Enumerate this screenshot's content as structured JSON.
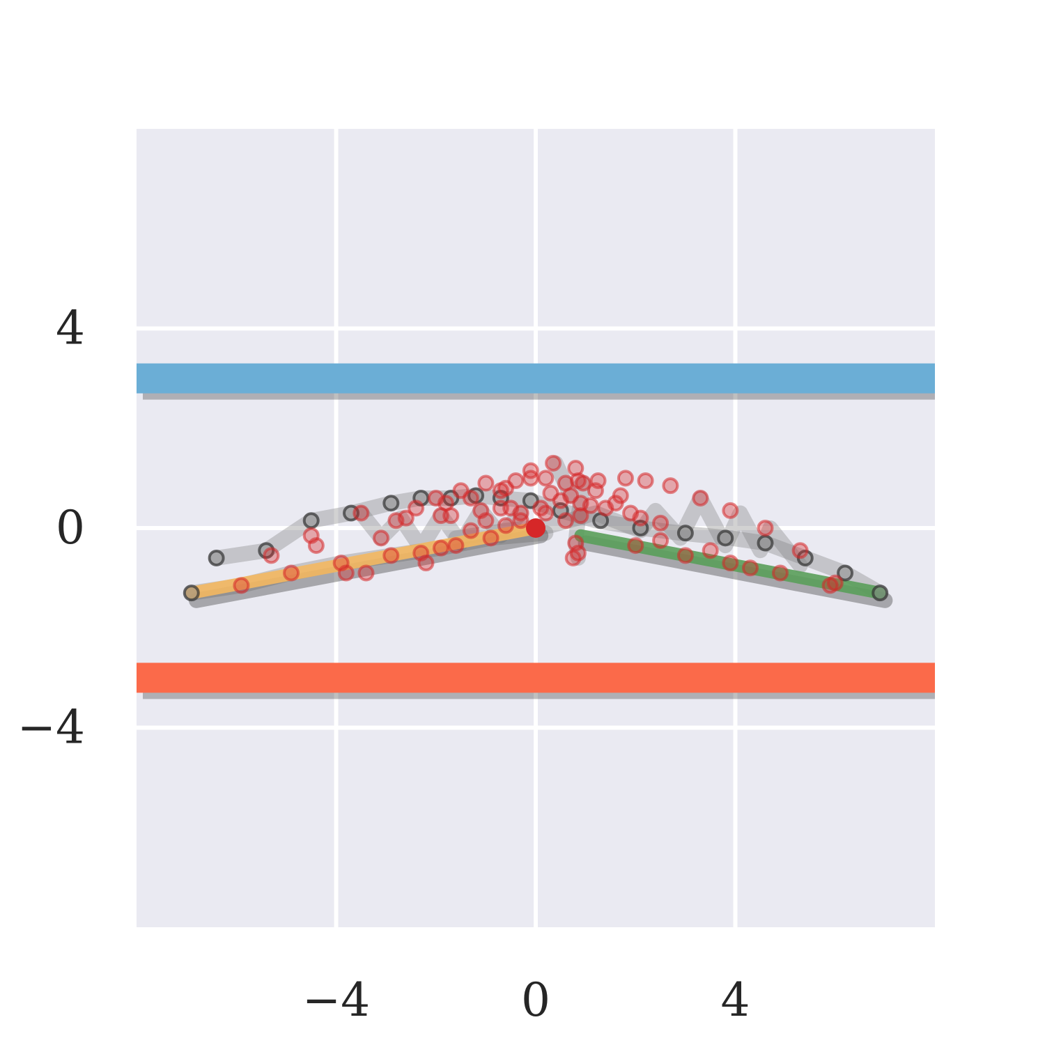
{
  "chart_data": {
    "type": "line",
    "title": "",
    "xlabel": "",
    "ylabel": "",
    "xlim": [
      -8,
      8
    ],
    "ylim": [
      -8,
      8
    ],
    "grid": true,
    "background": "#eaeaf2",
    "grid_color": "#ffffff",
    "x_ticks": [
      {
        "value": -4,
        "label": "−4"
      },
      {
        "value": 0,
        "label": "0"
      },
      {
        "value": 4,
        "label": "4"
      }
    ],
    "y_ticks": [
      {
        "value": 4,
        "label": "4"
      },
      {
        "value": 0,
        "label": "0"
      },
      {
        "value": -4,
        "label": "−4"
      }
    ],
    "bands": [
      {
        "color": "#6baed6",
        "y_top": 3.3,
        "y_bottom": 2.7
      },
      {
        "color": "#fb6a4a",
        "y_top": -2.7,
        "y_bottom": -3.3
      }
    ],
    "reference_paths": [
      {
        "color": "#f4b860",
        "points": [
          [
            -6.9,
            -1.3
          ],
          [
            0,
            0
          ]
        ]
      },
      {
        "color": "#5a9e5a",
        "points": [
          [
            0.9,
            -0.15
          ],
          [
            6.9,
            -1.3
          ]
        ]
      }
    ],
    "ghost_paths": [
      [
        [
          -6.9,
          -1.3
        ],
        [
          -5.9,
          -1.15
        ],
        [
          -4.9,
          -0.9
        ],
        [
          -3.9,
          -0.7
        ],
        [
          -2.9,
          -0.55
        ],
        [
          -1.9,
          -0.4
        ],
        [
          -0.9,
          -0.2
        ],
        [
          0.2,
          -0.1
        ]
      ],
      [
        [
          -6.4,
          -0.6
        ],
        [
          -5.4,
          -0.45
        ],
        [
          -4.5,
          0.15
        ],
        [
          -3.7,
          0.3
        ],
        [
          -2.9,
          0.5
        ],
        [
          -2.3,
          0.6
        ],
        [
          -1.7,
          0.6
        ],
        [
          -1.2,
          0.65
        ],
        [
          -0.7,
          0.6
        ],
        [
          -0.1,
          0.55
        ],
        [
          0.5,
          0.35
        ],
        [
          1.2,
          0.15
        ],
        [
          2.1,
          0.0
        ],
        [
          2.9,
          -0.1
        ],
        [
          3.9,
          -0.2
        ],
        [
          4.6,
          -0.3
        ],
        [
          5.4,
          -0.6
        ],
        [
          6.2,
          -0.9
        ],
        [
          6.9,
          -1.3
        ]
      ],
      [
        [
          -1.6,
          -0.2
        ],
        [
          -0.6,
          -0.05
        ],
        [
          0.3,
          0.05
        ],
        [
          1.2,
          0.3
        ],
        [
          2.1,
          -0.05
        ],
        [
          2.4,
          0.35
        ],
        [
          2.9,
          -0.2
        ],
        [
          3.3,
          0.6
        ],
        [
          3.8,
          -0.35
        ],
        [
          4.1,
          0.3
        ],
        [
          4.5,
          -0.45
        ],
        [
          4.7,
          0.0
        ],
        [
          5.3,
          -0.75
        ]
      ],
      [
        [
          -3.5,
          0.3
        ],
        [
          -3.1,
          -0.2
        ],
        [
          -2.7,
          0.2
        ],
        [
          -2.3,
          -0.4
        ],
        [
          -1.9,
          0.25
        ],
        [
          -1.5,
          -0.3
        ],
        [
          -1.1,
          0.35
        ],
        [
          -0.7,
          -0.15
        ],
        [
          -0.3,
          0.3
        ]
      ],
      [
        [
          0.4,
          1.3
        ],
        [
          0.7,
          0.65
        ],
        [
          0.95,
          0.9
        ],
        [
          0.85,
          0.2
        ],
        [
          0.8,
          -0.3
        ],
        [
          0.85,
          -0.6
        ]
      ]
    ],
    "ghost_points": [
      [
        -6.9,
        -1.3
      ],
      [
        -6.4,
        -0.6
      ],
      [
        -5.4,
        -0.45
      ],
      [
        -4.5,
        0.15
      ],
      [
        -3.7,
        0.3
      ],
      [
        -2.9,
        0.5
      ],
      [
        -2.3,
        0.6
      ],
      [
        -1.7,
        0.6
      ],
      [
        -1.2,
        0.65
      ],
      [
        -0.7,
        0.6
      ],
      [
        -0.1,
        0.55
      ],
      [
        0.5,
        0.35
      ],
      [
        1.3,
        0.15
      ],
      [
        2.1,
        0.0
      ],
      [
        3.0,
        -0.1
      ],
      [
        3.8,
        -0.2
      ],
      [
        4.6,
        -0.3
      ],
      [
        5.4,
        -0.6
      ],
      [
        6.2,
        -0.9
      ],
      [
        6.9,
        -1.3
      ]
    ],
    "trace_points": [
      [
        -5.9,
        -1.15
      ],
      [
        -4.9,
        -0.9
      ],
      [
        -3.9,
        -0.7
      ],
      [
        -3.8,
        -0.9
      ],
      [
        -3.4,
        -0.9
      ],
      [
        -2.9,
        -0.55
      ],
      [
        -2.3,
        -0.5
      ],
      [
        -1.9,
        -0.4
      ],
      [
        -1.6,
        -0.35
      ],
      [
        -0.9,
        -0.2
      ],
      [
        -2.2,
        -0.7
      ],
      [
        -5.3,
        -0.55
      ],
      [
        -4.4,
        -0.35
      ],
      [
        -4.5,
        -0.15
      ],
      [
        -3.5,
        0.3
      ],
      [
        -3.1,
        -0.2
      ],
      [
        -2.8,
        0.15
      ],
      [
        -2.4,
        0.4
      ],
      [
        -2.0,
        0.6
      ],
      [
        -1.9,
        0.25
      ],
      [
        -1.5,
        0.75
      ],
      [
        -1.3,
        0.6
      ],
      [
        -1.0,
        0.9
      ],
      [
        -0.7,
        0.75
      ],
      [
        -0.6,
        0.8
      ],
      [
        -0.4,
        0.95
      ],
      [
        -0.1,
        1.0
      ],
      [
        -0.1,
        1.15
      ],
      [
        0.2,
        1.0
      ],
      [
        0.35,
        1.3
      ],
      [
        0.6,
        0.9
      ],
      [
        0.85,
        0.95
      ],
      [
        1.25,
        0.95
      ],
      [
        1.8,
        1.0
      ],
      [
        2.2,
        0.95
      ],
      [
        2.7,
        0.85
      ],
      [
        3.3,
        0.6
      ],
      [
        3.9,
        0.35
      ],
      [
        4.6,
        0.0
      ],
      [
        5.3,
        -0.45
      ],
      [
        6.0,
        -1.1
      ],
      [
        -1.7,
        0.25
      ],
      [
        -1.1,
        0.35
      ],
      [
        -0.7,
        0.4
      ],
      [
        -0.3,
        0.3
      ],
      [
        0.1,
        0.4
      ],
      [
        0.5,
        0.55
      ],
      [
        0.9,
        0.5
      ],
      [
        1.2,
        0.75
      ],
      [
        1.6,
        0.5
      ],
      [
        1.7,
        0.65
      ],
      [
        1.9,
        0.3
      ],
      [
        2.5,
        0.1
      ],
      [
        2.1,
        0.2
      ],
      [
        -1.3,
        -0.05
      ],
      [
        -1.0,
        0.15
      ],
      [
        -0.6,
        0.05
      ],
      [
        -0.3,
        0.15
      ],
      [
        0.2,
        0.3
      ],
      [
        0.6,
        0.15
      ],
      [
        0.9,
        0.25
      ],
      [
        1.1,
        0.45
      ],
      [
        0.8,
        1.2
      ],
      [
        0.95,
        0.9
      ],
      [
        0.7,
        0.65
      ],
      [
        0.8,
        -0.3
      ],
      [
        0.85,
        -0.5
      ],
      [
        0.75,
        -0.6
      ],
      [
        2.0,
        -0.35
      ],
      [
        2.5,
        -0.25
      ],
      [
        3.0,
        -0.55
      ],
      [
        3.5,
        -0.45
      ],
      [
        3.9,
        -0.7
      ],
      [
        4.3,
        -0.8
      ],
      [
        4.9,
        -0.9
      ],
      [
        5.9,
        -1.15
      ],
      [
        -2.6,
        0.2
      ],
      [
        -1.8,
        0.5
      ],
      [
        -0.5,
        0.4
      ],
      [
        0.3,
        0.7
      ],
      [
        1.4,
        0.4
      ]
    ],
    "current_point": [
      0,
      0
    ],
    "colors": {
      "trace": "#d62728",
      "ghost": "#555555",
      "current": "#d62728"
    }
  }
}
